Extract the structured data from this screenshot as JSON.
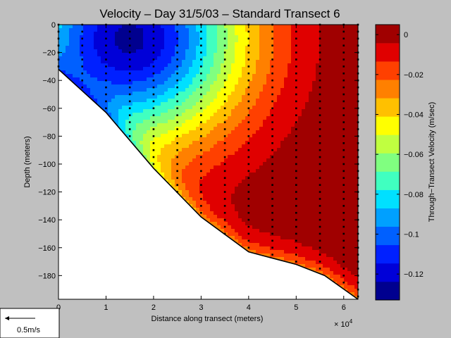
{
  "chart_data": {
    "type": "contour",
    "title": "Velocity – Day 31/5/03 – Standard Transect 6",
    "xlabel": "Distance along transect (meters)",
    "x_exponent_label": "× 10",
    "x_exponent_power": "4",
    "ylabel": "Depth (meters)",
    "colorbar_label": "Through−Transect Velocity (m/sec)",
    "xlim": [
      0,
      63000
    ],
    "ylim": [
      -197,
      0
    ],
    "x_ticks": [
      "0",
      "1",
      "2",
      "3",
      "4",
      "5",
      "6"
    ],
    "y_ticks": [
      "0",
      "−20",
      "−40",
      "−60",
      "−80",
      "−100",
      "−120",
      "−140",
      "−160",
      "−180"
    ],
    "clim": [
      -0.133,
      0.005
    ],
    "colorbar_ticks": [
      "0",
      "−0.02",
      "−0.04",
      "−0.06",
      "−0.08",
      "−0.1",
      "−0.12"
    ],
    "colors": [
      "#00008f",
      "#0000d8",
      "#0020ff",
      "#0060ff",
      "#00a0ff",
      "#00e0ff",
      "#40ffc0",
      "#80ff80",
      "#c0ff40",
      "#ffff00",
      "#ffc000",
      "#ff8000",
      "#ff4000",
      "#e00000",
      "#a00000"
    ],
    "bottom_profile": [
      [
        0,
        -32
      ],
      [
        10000,
        -63
      ],
      [
        20000,
        -103
      ],
      [
        30000,
        -138
      ],
      [
        40000,
        -163
      ],
      [
        50000,
        -172
      ],
      [
        56000,
        -180
      ],
      [
        63000,
        -197
      ]
    ],
    "velocity_minimum": {
      "x": 15000,
      "depth": -10,
      "value": -0.13
    },
    "profile_stations_x": [
      0,
      5000,
      10000,
      15000,
      20000,
      25000,
      30000,
      35000,
      40000,
      45000,
      50000,
      55000,
      60000,
      63000
    ],
    "sample_depth_step": 5,
    "scale_arrow_label": "0.5m/s"
  }
}
